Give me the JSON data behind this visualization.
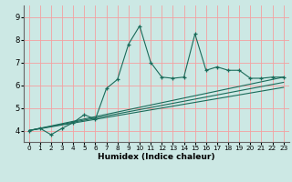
{
  "xlabel": "Humidex (Indice chaleur)",
  "bg_color": "#cce8e4",
  "grid_color": "#f4a0a0",
  "line_color": "#1a6b5a",
  "xlim": [
    -0.5,
    23.5
  ],
  "ylim": [
    3.5,
    9.5
  ],
  "xticks": [
    0,
    1,
    2,
    3,
    4,
    5,
    6,
    7,
    8,
    9,
    10,
    11,
    12,
    13,
    14,
    15,
    16,
    17,
    18,
    19,
    20,
    21,
    22,
    23
  ],
  "yticks": [
    4,
    5,
    6,
    7,
    8,
    9
  ],
  "spiky_x": [
    0,
    1,
    2,
    3,
    4,
    5,
    6,
    7,
    8,
    9,
    10,
    11,
    12,
    13,
    14,
    15,
    16,
    17,
    18,
    19,
    20,
    21,
    22,
    23
  ],
  "spiky_y": [
    4.0,
    4.1,
    3.82,
    4.1,
    4.35,
    4.7,
    4.5,
    5.85,
    6.25,
    7.8,
    8.6,
    7.0,
    6.35,
    6.3,
    6.35,
    8.25,
    6.65,
    6.8,
    6.65,
    6.65,
    6.3,
    6.3,
    6.35,
    6.35
  ],
  "line2_y_end": 6.35,
  "line3_y_end": 5.9,
  "line4_y_end": 6.12,
  "lines_x_start": 0,
  "lines_x_end": 23,
  "lines_y_start": 4.0
}
